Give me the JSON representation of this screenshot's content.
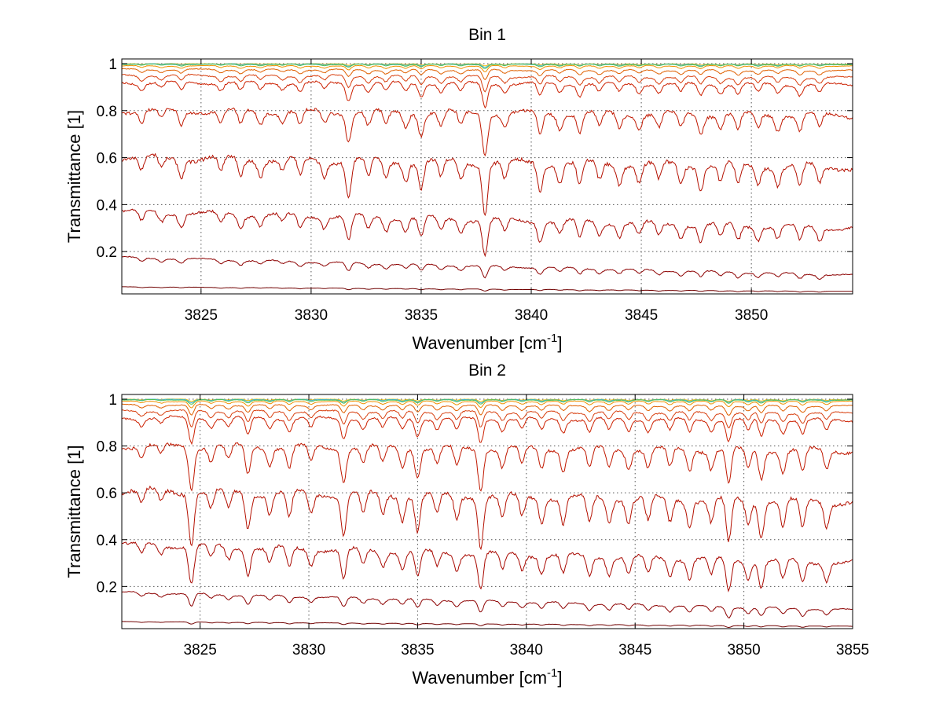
{
  "chart_data": [
    {
      "type": "line",
      "title": "Bin 1",
      "xlabel": "Wavenumber [cm",
      "xlabel_sup": "-1",
      "xlabel_end": "]",
      "ylabel": "Transmittance [1]",
      "xlim": [
        3821.4,
        3854.6
      ],
      "ylim": [
        0.02,
        1.02
      ],
      "xticks": [
        3825,
        3830,
        3835,
        3840,
        3845,
        3850
      ],
      "xtick_labels": [
        "3825",
        "3830",
        "3835",
        "3840",
        "3845",
        "3850"
      ],
      "yticks": [
        0.2,
        0.4,
        0.6,
        0.8,
        1.0
      ],
      "ytick_labels": [
        "0.2",
        "0.4",
        "0.6",
        "0.8",
        "1"
      ],
      "grid": true,
      "series": [
        {
          "baseline": [
            1.0,
            0.998
          ],
          "depth": 0.01,
          "color": "#f0c000"
        },
        {
          "baseline": [
            0.999,
            0.997
          ],
          "depth": 0.015,
          "color": "#40b0e0"
        },
        {
          "baseline": [
            0.997,
            0.996
          ],
          "depth": 0.02,
          "color": "#50c050"
        },
        {
          "baseline": [
            0.99,
            0.99
          ],
          "depth": 0.03,
          "color": "#f09000"
        },
        {
          "baseline": [
            0.975,
            0.97
          ],
          "depth": 0.05,
          "color": "#e06000"
        },
        {
          "baseline": [
            0.95,
            0.94
          ],
          "depth": 0.08,
          "color": "#d84010"
        },
        {
          "baseline": [
            0.92,
            0.91
          ],
          "depth": 0.12,
          "color": "#cc2000"
        },
        {
          "baseline": [
            0.8,
            0.78
          ],
          "depth": 0.2,
          "color": "#c01800"
        },
        {
          "baseline": [
            0.6,
            0.56
          ],
          "depth": 0.25,
          "color": "#b41000"
        },
        {
          "baseline": [
            0.37,
            0.3
          ],
          "depth": 0.18,
          "color": "#a80800"
        },
        {
          "baseline": [
            0.175,
            0.1
          ],
          "depth": 0.06,
          "color": "#8c0000"
        },
        {
          "baseline": [
            0.05,
            0.03
          ],
          "depth": 0.01,
          "color": "#700000"
        }
      ],
      "absorption_lines": [
        {
          "x": 3822.3,
          "strength": 0.25
        },
        {
          "x": 3823.2,
          "strength": 0.2
        },
        {
          "x": 3824.1,
          "strength": 0.3
        },
        {
          "x": 3825.9,
          "strength": 0.25
        },
        {
          "x": 3826.8,
          "strength": 0.3
        },
        {
          "x": 3827.7,
          "strength": 0.25
        },
        {
          "x": 3828.7,
          "strength": 0.2
        },
        {
          "x": 3829.5,
          "strength": 0.3
        },
        {
          "x": 3830.6,
          "strength": 0.25
        },
        {
          "x": 3831.7,
          "strength": 0.6
        },
        {
          "x": 3832.6,
          "strength": 0.3
        },
        {
          "x": 3833.4,
          "strength": 0.3
        },
        {
          "x": 3834.3,
          "strength": 0.3
        },
        {
          "x": 3835.0,
          "strength": 0.45
        },
        {
          "x": 3835.9,
          "strength": 0.3
        },
        {
          "x": 3836.8,
          "strength": 0.3
        },
        {
          "x": 3837.9,
          "strength": 0.85
        },
        {
          "x": 3838.8,
          "strength": 0.3
        },
        {
          "x": 3840.4,
          "strength": 0.45
        },
        {
          "x": 3841.3,
          "strength": 0.3
        },
        {
          "x": 3842.2,
          "strength": 0.4
        },
        {
          "x": 3843.1,
          "strength": 0.3
        },
        {
          "x": 3844.0,
          "strength": 0.3
        },
        {
          "x": 3844.9,
          "strength": 0.3
        },
        {
          "x": 3845.8,
          "strength": 0.3
        },
        {
          "x": 3846.8,
          "strength": 0.3
        },
        {
          "x": 3847.7,
          "strength": 0.4
        },
        {
          "x": 3848.6,
          "strength": 0.3
        },
        {
          "x": 3849.4,
          "strength": 0.35
        },
        {
          "x": 3850.3,
          "strength": 0.3
        },
        {
          "x": 3851.2,
          "strength": 0.3
        },
        {
          "x": 3852.2,
          "strength": 0.35
        },
        {
          "x": 3853.1,
          "strength": 0.3
        }
      ]
    },
    {
      "type": "line",
      "title": "Bin 2",
      "xlabel": "Wavenumber [cm",
      "xlabel_sup": "-1",
      "xlabel_end": "]",
      "ylabel": "Transmittance [1]",
      "xlim": [
        3821.4,
        3855.0
      ],
      "ylim": [
        0.02,
        1.02
      ],
      "xticks": [
        3825,
        3830,
        3835,
        3840,
        3845,
        3850,
        3855
      ],
      "xtick_labels": [
        "3825",
        "3830",
        "3835",
        "3840",
        "3845",
        "3850",
        "3855"
      ],
      "yticks": [
        0.2,
        0.4,
        0.6,
        0.8,
        1.0
      ],
      "ytick_labels": [
        "0.2",
        "0.4",
        "0.6",
        "0.8",
        "1"
      ],
      "grid": true,
      "series": [
        {
          "baseline": [
            1.0,
            0.998
          ],
          "depth": 0.01,
          "color": "#f0c000"
        },
        {
          "baseline": [
            0.999,
            0.997
          ],
          "depth": 0.015,
          "color": "#40b0e0"
        },
        {
          "baseline": [
            0.997,
            0.996
          ],
          "depth": 0.02,
          "color": "#50c050"
        },
        {
          "baseline": [
            0.99,
            0.99
          ],
          "depth": 0.03,
          "color": "#f09000"
        },
        {
          "baseline": [
            0.975,
            0.97
          ],
          "depth": 0.05,
          "color": "#e06000"
        },
        {
          "baseline": [
            0.95,
            0.94
          ],
          "depth": 0.08,
          "color": "#d84010"
        },
        {
          "baseline": [
            0.92,
            0.91
          ],
          "depth": 0.12,
          "color": "#cc2000"
        },
        {
          "baseline": [
            0.8,
            0.78
          ],
          "depth": 0.2,
          "color": "#c01800"
        },
        {
          "baseline": [
            0.61,
            0.56
          ],
          "depth": 0.25,
          "color": "#b41000"
        },
        {
          "baseline": [
            0.38,
            0.3
          ],
          "depth": 0.18,
          "color": "#a80800"
        },
        {
          "baseline": [
            0.175,
            0.1
          ],
          "depth": 0.06,
          "color": "#8c0000"
        },
        {
          "baseline": [
            0.05,
            0.03
          ],
          "depth": 0.01,
          "color": "#700000"
        }
      ],
      "absorption_lines": [
        {
          "x": 3822.3,
          "strength": 0.25
        },
        {
          "x": 3823.2,
          "strength": 0.2
        },
        {
          "x": 3824.6,
          "strength": 0.9
        },
        {
          "x": 3825.5,
          "strength": 0.3
        },
        {
          "x": 3826.3,
          "strength": 0.3
        },
        {
          "x": 3827.2,
          "strength": 0.6
        },
        {
          "x": 3828.2,
          "strength": 0.35
        },
        {
          "x": 3829.1,
          "strength": 0.45
        },
        {
          "x": 3830.1,
          "strength": 0.35
        },
        {
          "x": 3831.6,
          "strength": 0.7
        },
        {
          "x": 3832.5,
          "strength": 0.35
        },
        {
          "x": 3833.4,
          "strength": 0.35
        },
        {
          "x": 3834.3,
          "strength": 0.4
        },
        {
          "x": 3835.0,
          "strength": 0.6
        },
        {
          "x": 3835.9,
          "strength": 0.35
        },
        {
          "x": 3836.8,
          "strength": 0.4
        },
        {
          "x": 3837.9,
          "strength": 0.85
        },
        {
          "x": 3838.9,
          "strength": 0.4
        },
        {
          "x": 3839.8,
          "strength": 0.35
        },
        {
          "x": 3840.7,
          "strength": 0.4
        },
        {
          "x": 3841.7,
          "strength": 0.45
        },
        {
          "x": 3842.9,
          "strength": 0.45
        },
        {
          "x": 3843.8,
          "strength": 0.4
        },
        {
          "x": 3844.7,
          "strength": 0.4
        },
        {
          "x": 3845.6,
          "strength": 0.4
        },
        {
          "x": 3846.6,
          "strength": 0.4
        },
        {
          "x": 3847.5,
          "strength": 0.45
        },
        {
          "x": 3848.5,
          "strength": 0.4
        },
        {
          "x": 3849.3,
          "strength": 0.75
        },
        {
          "x": 3850.2,
          "strength": 0.4
        },
        {
          "x": 3850.8,
          "strength": 0.6
        },
        {
          "x": 3851.8,
          "strength": 0.45
        },
        {
          "x": 3852.7,
          "strength": 0.5
        },
        {
          "x": 3853.8,
          "strength": 0.4
        }
      ]
    }
  ]
}
